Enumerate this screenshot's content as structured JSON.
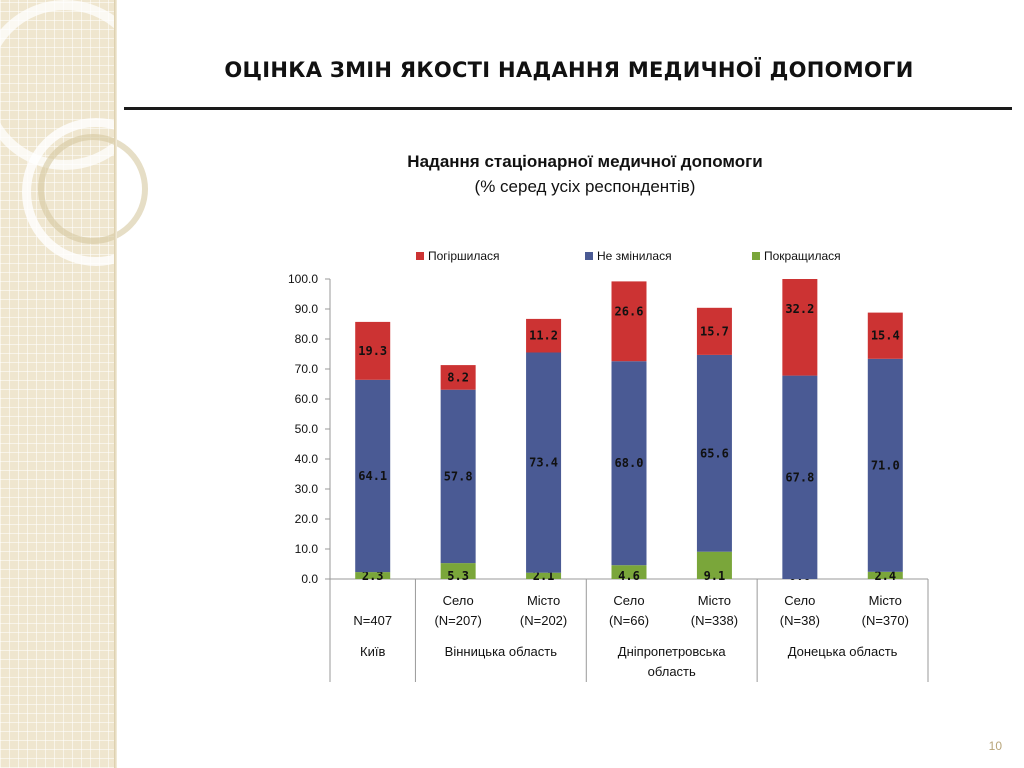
{
  "slide": {
    "title": "ОЦІНКА ЗМІН ЯКОСТІ НАДАННЯ МЕДИЧНОЇ ДОПОМОГИ",
    "page_number": "10"
  },
  "chart_data": {
    "type": "bar",
    "stacked": true,
    "title": "Надання стаціонарної медичної допомоги",
    "subtitle": "(% серед усіх респондентів)",
    "ylim": [
      0,
      100
    ],
    "yticks": [
      "0.0",
      "10.0",
      "20.0",
      "30.0",
      "40.0",
      "50.0",
      "60.0",
      "70.0",
      "80.0",
      "90.0",
      "100.0"
    ],
    "legend_position": "top",
    "categories": [
      {
        "line1": "",
        "line2": "N=407"
      },
      {
        "line1": "Село",
        "line2": "(N=207)"
      },
      {
        "line1": "Місто",
        "line2": "(N=202)"
      },
      {
        "line1": "Село",
        "line2": "(N=66)"
      },
      {
        "line1": "Місто",
        "line2": "(N=338)"
      },
      {
        "line1": "Село",
        "line2": "(N=38)"
      },
      {
        "line1": "Місто",
        "line2": "(N=370)"
      }
    ],
    "groups": [
      {
        "label": "Київ",
        "span": 1
      },
      {
        "label": "Вінницька область",
        "span": 2
      },
      {
        "label": "Дніпропетровська область",
        "span": 2
      },
      {
        "label": "Донецька область",
        "span": 2
      }
    ],
    "series": [
      {
        "name": "Покращилася",
        "color": "#7aa63a",
        "values": [
          2.3,
          5.3,
          2.1,
          4.6,
          9.1,
          0.0,
          2.4
        ],
        "labels": [
          "2.3",
          "5.3",
          "2.1",
          "4.6",
          "9.1",
          "0.0",
          "2.4"
        ]
      },
      {
        "name": "Не змінилася",
        "color": "#4a5a94",
        "values": [
          64.1,
          57.8,
          73.4,
          68.0,
          65.6,
          67.8,
          71.0
        ],
        "labels": [
          "64.1",
          "57.8",
          "73.4",
          "68.0",
          "65.6",
          "67.8",
          "71.0"
        ]
      },
      {
        "name": "Погіршилася",
        "color": "#cc3333",
        "values": [
          19.3,
          8.2,
          11.2,
          26.6,
          15.7,
          32.2,
          15.4
        ],
        "labels": [
          "19.3",
          "8.2",
          "11.2",
          "26.6",
          "15.7",
          "32.2",
          "15.4"
        ]
      }
    ],
    "legend_order": [
      "Погіршилася",
      "Не змінилася",
      "Покращилася"
    ]
  }
}
